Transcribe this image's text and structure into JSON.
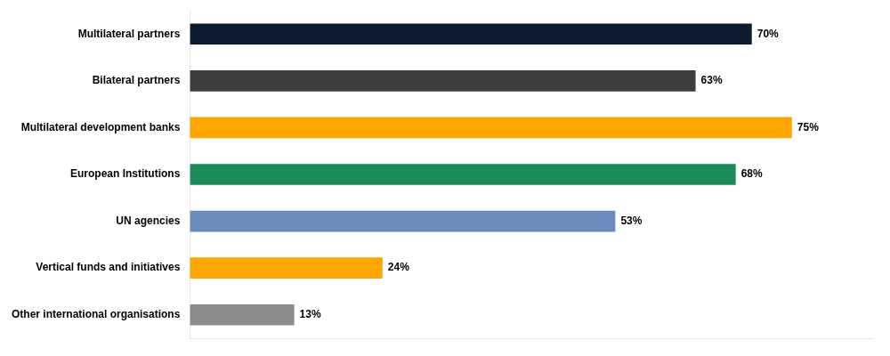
{
  "chart_data": {
    "type": "bar",
    "orientation": "horizontal",
    "categories": [
      "Other international organisations",
      "Vertical funds and initiatives",
      "UN agencies",
      "European Institutions",
      "Multilateral development banks",
      "Bilateral partners",
      "Multilateral partners"
    ],
    "values": [
      13,
      24,
      53,
      68,
      75,
      63,
      70
    ],
    "value_labels": [
      "13%",
      "24%",
      "53%",
      "68%",
      "75%",
      "63%",
      "70%"
    ],
    "colors": [
      "#8c8c8c",
      "#ffa500",
      "#6b8cba",
      "#1d8a5a",
      "#ffa500",
      "#3d3d3d",
      "#0d1b2e"
    ],
    "xlim": [
      0,
      85
    ],
    "data_labels": true,
    "tick_labels": "y",
    "grid": false
  }
}
